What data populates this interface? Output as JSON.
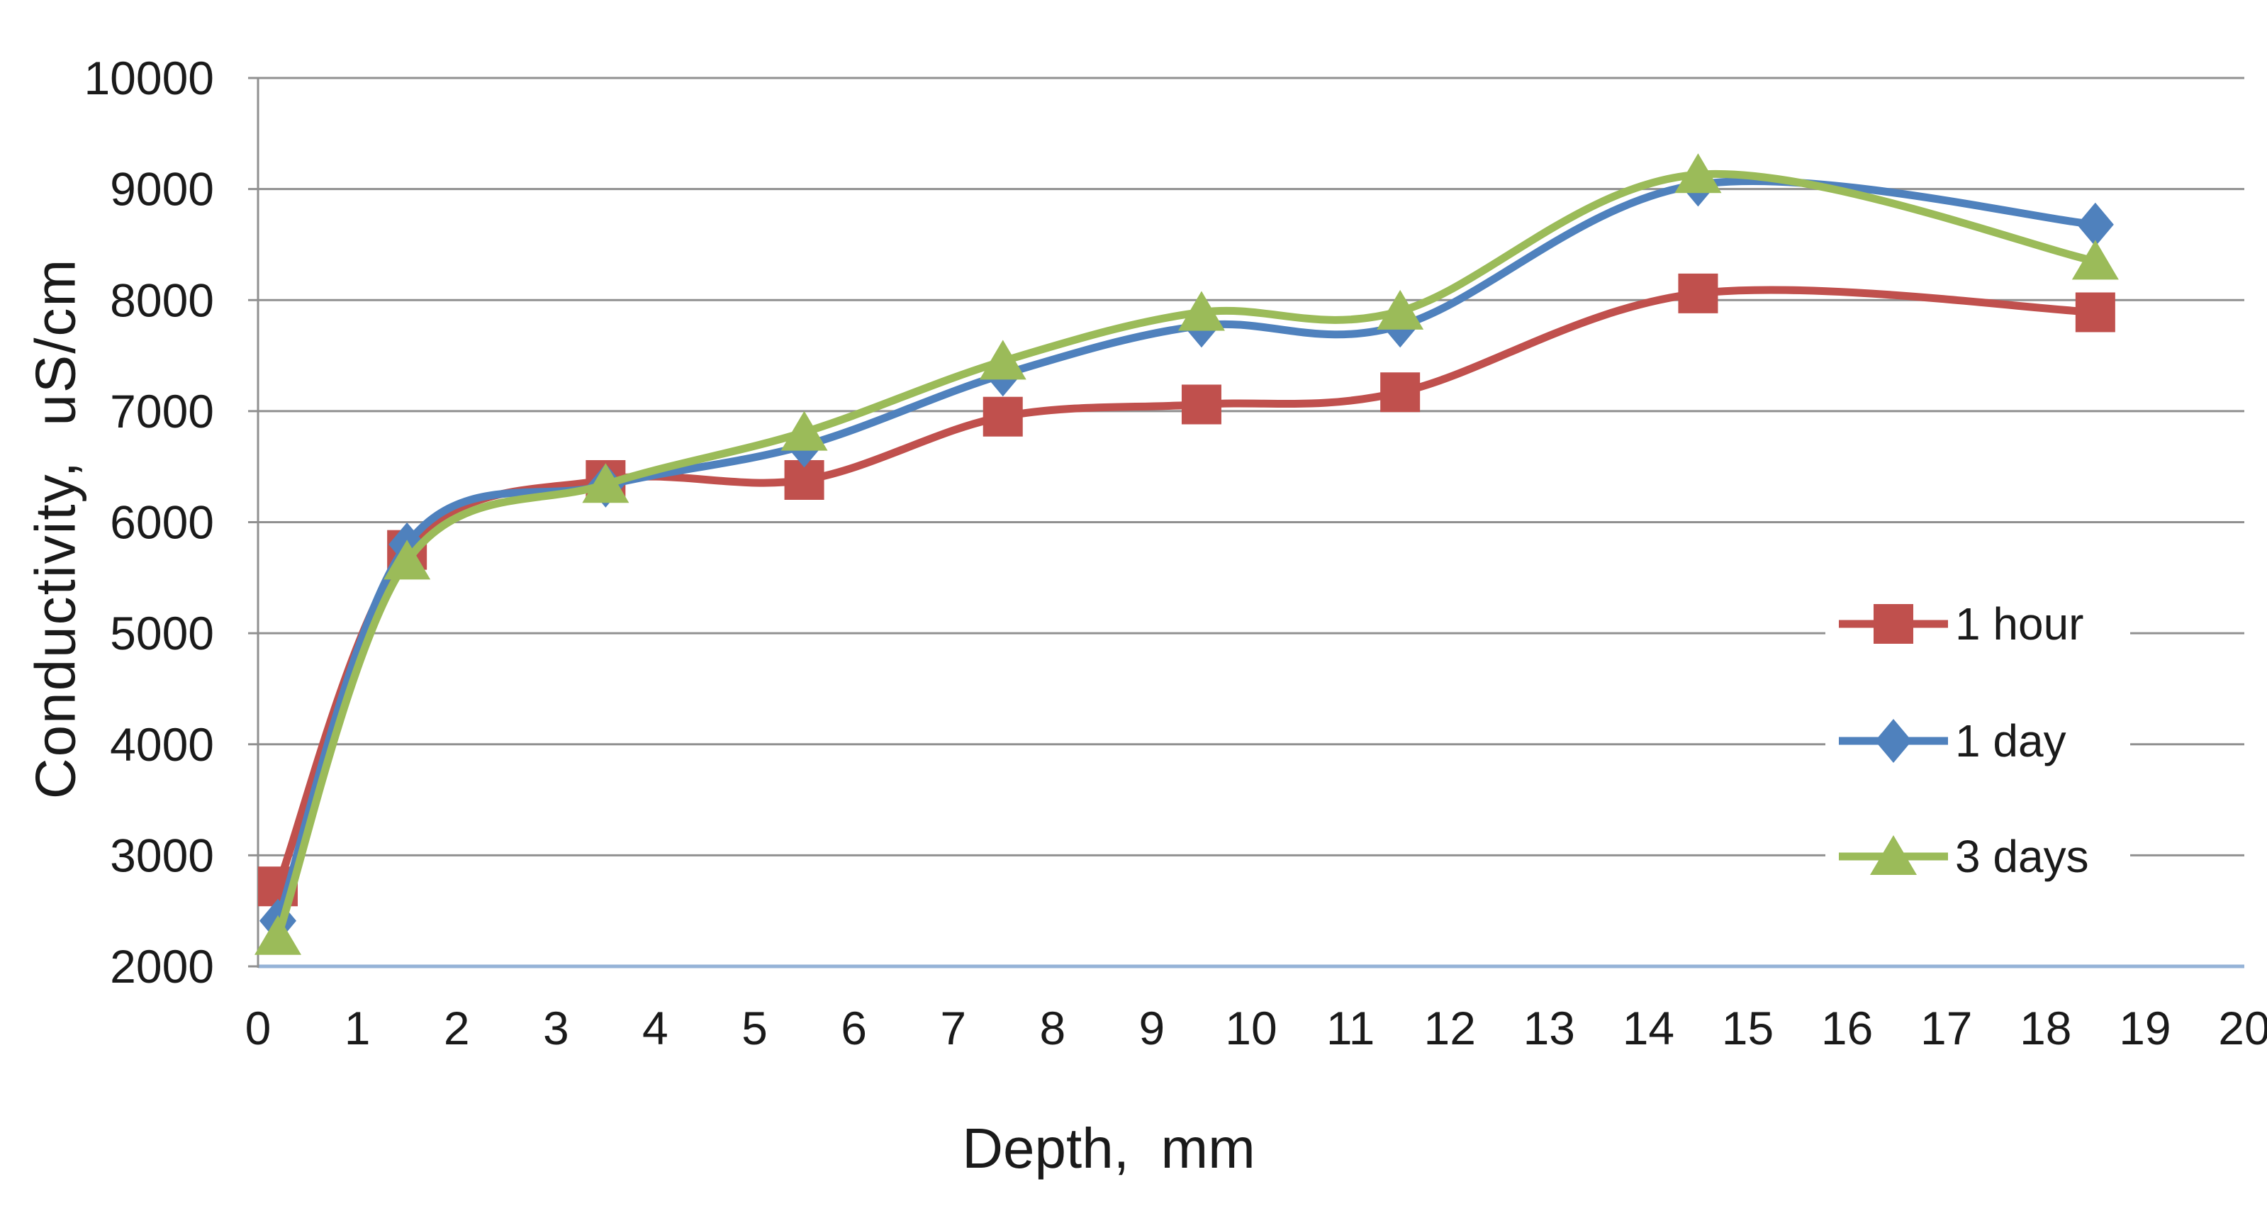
{
  "chart_data": {
    "type": "line",
    "title": "",
    "xlabel": "Depth,  mm",
    "ylabel": "Conductivity,  uS/cm",
    "x": [
      0.2,
      1.5,
      3.5,
      5.5,
      7.5,
      9.5,
      11.5,
      14.5,
      18.5
    ],
    "series": [
      {
        "name": "1 hour",
        "marker": "square",
        "color": "#C0504D",
        "values": [
          2720,
          5750,
          6380,
          6380,
          6950,
          7060,
          7170,
          8060,
          7890
        ]
      },
      {
        "name": "1 day",
        "marker": "diamond",
        "color": "#4F81BD",
        "values": [
          2410,
          5800,
          6330,
          6690,
          7330,
          7770,
          7770,
          9040,
          8680
        ]
      },
      {
        "name": "3 days",
        "marker": "triangle",
        "color": "#9BBB59",
        "values": [
          2270,
          5650,
          6340,
          6810,
          7450,
          7890,
          7900,
          9130,
          8350
        ]
      }
    ],
    "xlim": [
      0,
      20
    ],
    "ylim": [
      2000,
      10000
    ],
    "xticks": [
      0,
      1,
      2,
      3,
      4,
      5,
      6,
      7,
      8,
      9,
      10,
      11,
      12,
      13,
      14,
      15,
      16,
      17,
      18,
      19,
      20
    ],
    "yticks": [
      2000,
      3000,
      4000,
      5000,
      6000,
      7000,
      8000,
      9000,
      10000
    ],
    "grid": "horizontal",
    "legend_position": "inside-right",
    "line_smoothing": true,
    "colors": {
      "gridline": "#909090",
      "axis_line_bottom": "#95B3D7",
      "axis_line_left": "#909090",
      "text": "#1a1a1a",
      "background": "#ffffff"
    }
  }
}
